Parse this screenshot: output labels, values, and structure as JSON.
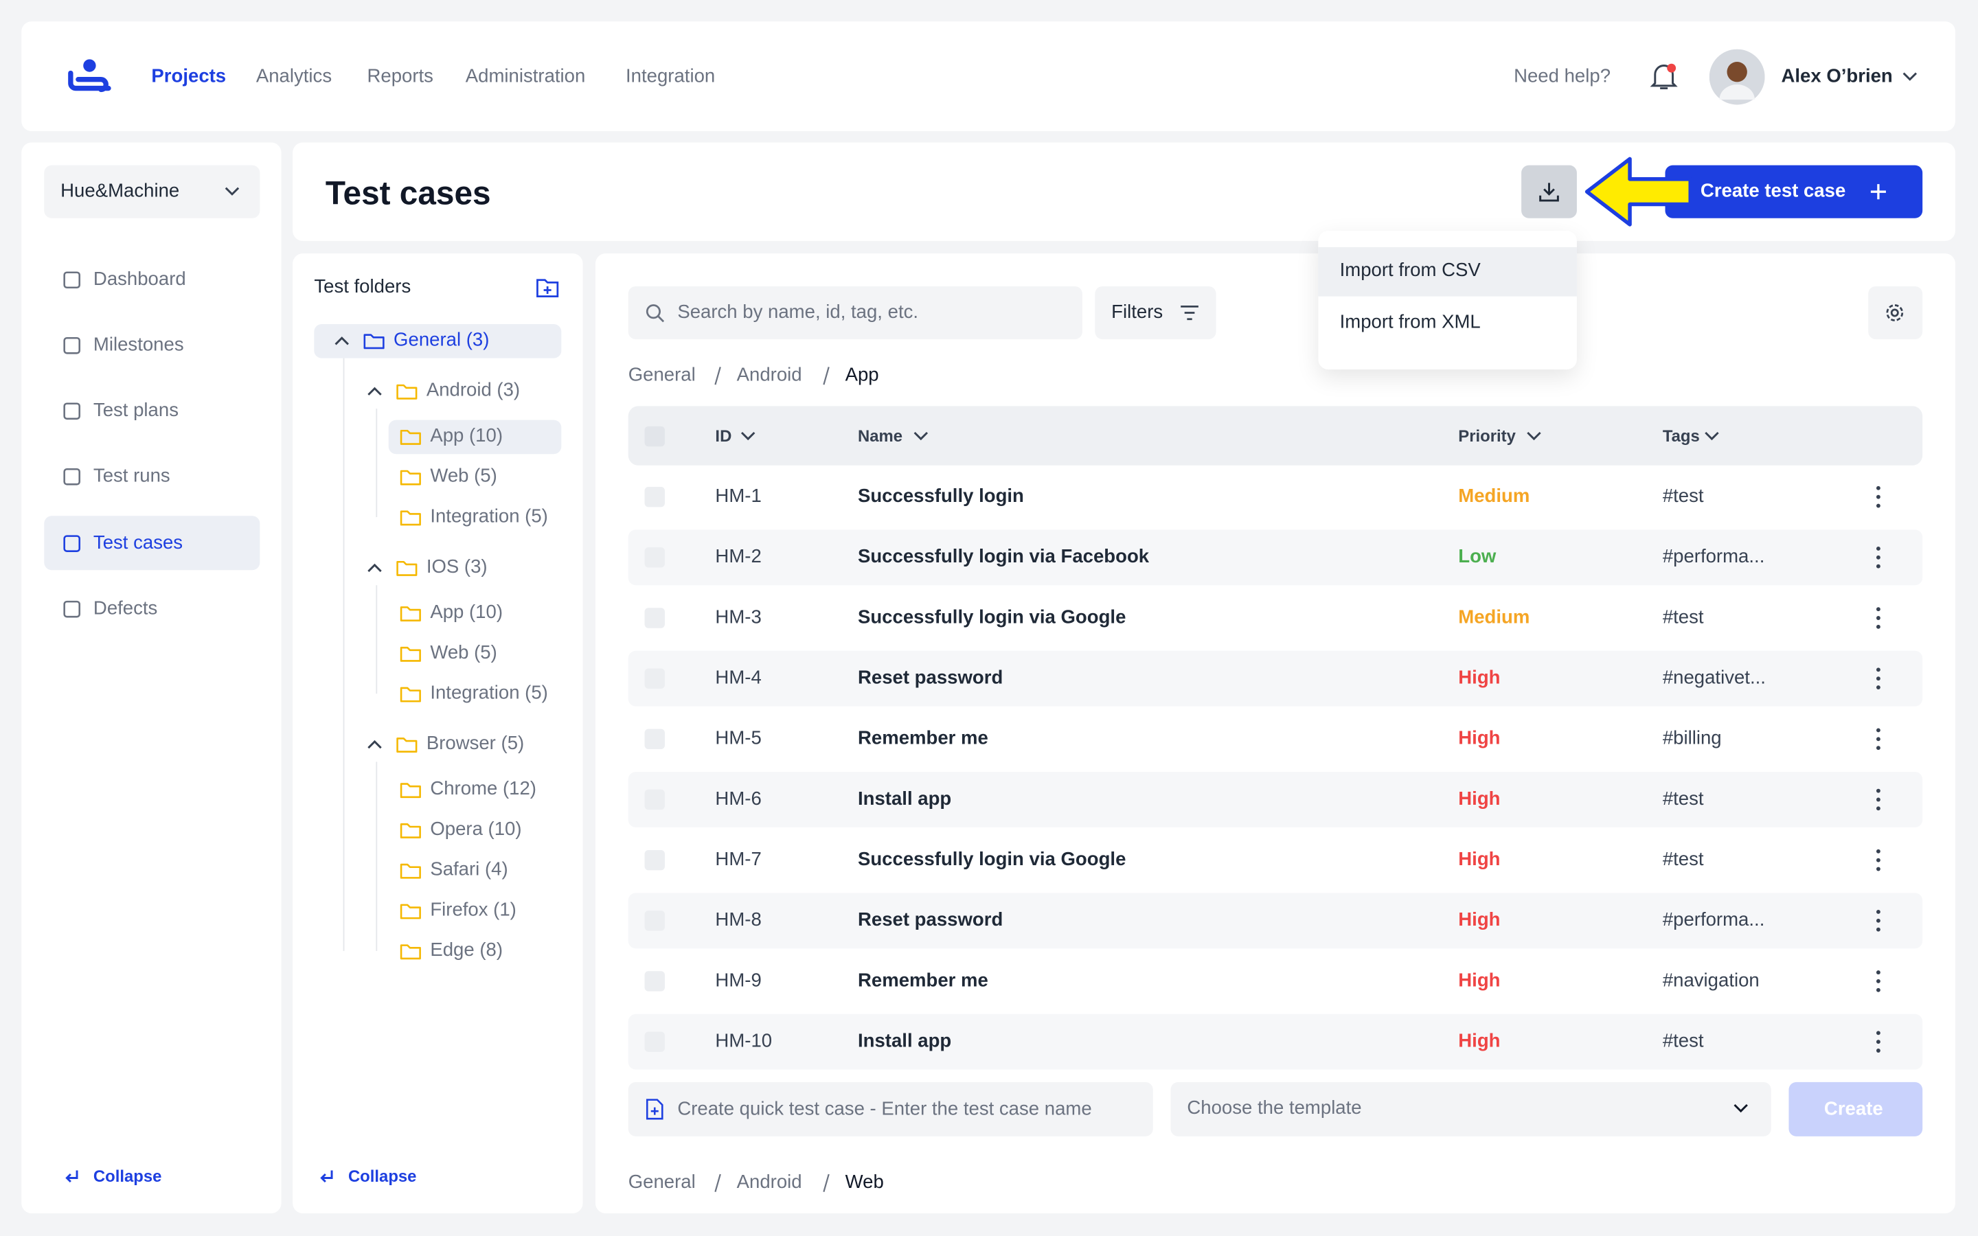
{
  "header": {
    "nav": [
      "Projects",
      "Analytics",
      "Reports",
      "Administration",
      "Integration"
    ],
    "help": "Need help?",
    "user": "Alex O’brien"
  },
  "sidebar": {
    "project": "Hue&Machine",
    "menu": [
      "Dashboard",
      "Milestones",
      "Test plans",
      "Test runs",
      "Test cases",
      "Defects"
    ],
    "collapse": "Collapse"
  },
  "page": {
    "title": "Test cases",
    "create_button": "Create test case",
    "import_menu": [
      "Import from CSV",
      "Import from XML"
    ]
  },
  "folders": {
    "title": "Test folders",
    "collapse": "Collapse",
    "tree": [
      {
        "label": "General (3)",
        "children": [
          {
            "label": "Android (3)",
            "children": [
              {
                "label": "App (10)"
              },
              {
                "label": "Web (5)"
              },
              {
                "label": "Integration (5)"
              }
            ]
          },
          {
            "label": "IOS (3)",
            "children": [
              {
                "label": "App (10)"
              },
              {
                "label": "Web (5)"
              },
              {
                "label": "Integration (5)"
              }
            ]
          },
          {
            "label": "Browser (5)",
            "children": [
              {
                "label": "Chrome (12)"
              },
              {
                "label": "Opera (10)"
              },
              {
                "label": "Safari (4)"
              },
              {
                "label": "Firefox (1)"
              },
              {
                "label": "Edge (8)"
              }
            ]
          }
        ]
      }
    ]
  },
  "table": {
    "search": "Search by name, id, tag, etc.",
    "filters": "Filters",
    "breadcrumb": [
      "General",
      "Android",
      "App"
    ],
    "columns": [
      "ID",
      "Name",
      "Priority",
      "Tags"
    ],
    "rows": [
      {
        "id": "HM-1",
        "name": "Successfully login",
        "priority": "Medium",
        "priority_color": "#f5a524",
        "tags": "#test"
      },
      {
        "id": "HM-2",
        "name": "Successfully login via Facebook",
        "priority": "Low",
        "priority_color": "#4caf50",
        "tags": "#performa..."
      },
      {
        "id": "HM-3",
        "name": "Successfully login via Google",
        "priority": "Medium",
        "priority_color": "#f5a524",
        "tags": "#test"
      },
      {
        "id": "HM-4",
        "name": "Reset password",
        "priority": "High",
        "priority_color": "#ef4444",
        "tags": "#negativet..."
      },
      {
        "id": "HM-5",
        "name": "Remember me",
        "priority": "High",
        "priority_color": "#ef4444",
        "tags": "#billing"
      },
      {
        "id": "HM-6",
        "name": "Install app",
        "priority": "High",
        "priority_color": "#ef4444",
        "tags": "#test"
      },
      {
        "id": "HM-7",
        "name": "Successfully login via Google",
        "priority": "High",
        "priority_color": "#ef4444",
        "tags": "#test"
      },
      {
        "id": "HM-8",
        "name": "Reset password",
        "priority": "High",
        "priority_color": "#ef4444",
        "tags": "#performa..."
      },
      {
        "id": "HM-9",
        "name": "Remember me",
        "priority": "High",
        "priority_color": "#ef4444",
        "tags": "#navigation"
      },
      {
        "id": "HM-10",
        "name": "Install app",
        "priority": "High",
        "priority_color": "#ef4444",
        "tags": "#test"
      }
    ],
    "quick_create": {
      "placeholder": "Create quick test case - Enter the test case name",
      "template": "Choose the template",
      "button": "Create"
    },
    "breadcrumb_next": [
      "General",
      "Android",
      "Web"
    ]
  }
}
